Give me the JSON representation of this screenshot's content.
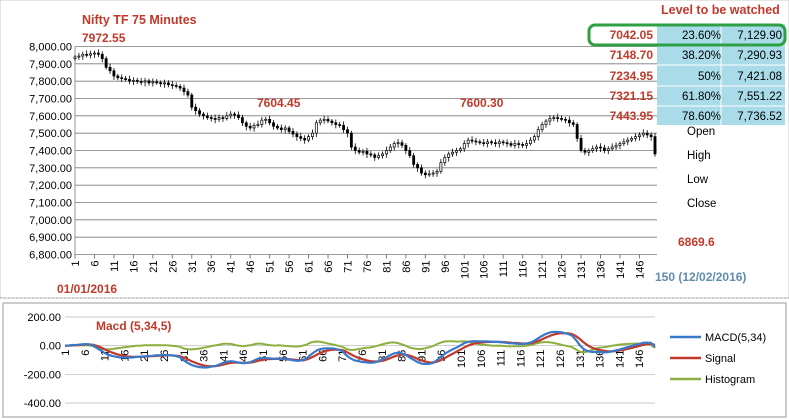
{
  "chart_data": [
    {
      "type": "candlestick",
      "title": "Nifty TF 75 Minutes",
      "y_ticks": [
        "8,000.00",
        "7,900.00",
        "7,800.00",
        "7,700.00",
        "7,600.00",
        "7,500.00",
        "7,400.00",
        "7,300.00",
        "7,200.00",
        "7,100.00",
        "7,000.00",
        "6,900.00",
        "6,800.00"
      ],
      "ylim": [
        6800,
        8000
      ],
      "x_ticks": [
        "1",
        "6",
        "11",
        "16",
        "21",
        "26",
        "31",
        "36",
        "41",
        "46",
        "51",
        "56",
        "61",
        "66",
        "71",
        "76",
        "81",
        "86",
        "91",
        "96",
        "101",
        "106",
        "111",
        "116",
        "121",
        "126",
        "131",
        "136",
        "141",
        "146"
      ],
      "xlim": [
        1,
        150
      ],
      "close": [
        7940,
        7945,
        7955,
        7950,
        7958,
        7962,
        7955,
        7930,
        7880,
        7860,
        7830,
        7820,
        7815,
        7810,
        7800,
        7805,
        7798,
        7795,
        7802,
        7790,
        7796,
        7792,
        7785,
        7790,
        7780,
        7775,
        7770,
        7760,
        7740,
        7720,
        7650,
        7630,
        7610,
        7600,
        7590,
        7585,
        7580,
        7590,
        7585,
        7600,
        7610,
        7605,
        7590,
        7560,
        7540,
        7530,
        7545,
        7550,
        7575,
        7580,
        7560,
        7540,
        7530,
        7520,
        7530,
        7510,
        7495,
        7480,
        7470,
        7460,
        7480,
        7500,
        7560,
        7575,
        7580,
        7570,
        7560,
        7550,
        7545,
        7520,
        7500,
        7420,
        7400,
        7390,
        7395,
        7380,
        7375,
        7360,
        7370,
        7380,
        7400,
        7420,
        7440,
        7445,
        7430,
        7400,
        7370,
        7320,
        7300,
        7270,
        7260,
        7265,
        7270,
        7280,
        7330,
        7360,
        7380,
        7390,
        7400,
        7410,
        7440,
        7460,
        7455,
        7450,
        7445,
        7440,
        7450,
        7445,
        7440,
        7450,
        7445,
        7440,
        7430,
        7440,
        7435,
        7430,
        7440,
        7460,
        7480,
        7520,
        7550,
        7570,
        7585,
        7590,
        7585,
        7580,
        7575,
        7560,
        7550,
        7470,
        7400,
        7390,
        7400,
        7410,
        7420,
        7415,
        7400,
        7410,
        7420,
        7430,
        7440,
        7450,
        7460,
        7470,
        7480,
        7490,
        7500,
        7490,
        7480,
        7380
      ],
      "annotations": [
        {
          "text": "7972.55",
          "x": 8,
          "y": 7972.55
        },
        {
          "text": "7604.45",
          "x": 55,
          "y": 7604.45
        },
        {
          "text": "7600.30",
          "x": 102,
          "y": 7600.3
        },
        {
          "text": "6869.6",
          "x": 148,
          "y": 6869.6
        }
      ],
      "x_start_label": "01/01/2016",
      "x_end_label": "150 (12/02/2016)",
      "levels_title": "Level to be watched",
      "levels": [
        {
          "label": "7042.05",
          "pct": "23.60%",
          "value": "7,129.90"
        },
        {
          "label": "7148.70",
          "pct": "38.20%",
          "value": "7,290.93"
        },
        {
          "label": "7234.95",
          "pct": "50%",
          "value": "7,421.08"
        },
        {
          "label": "7321.15",
          "pct": "61.80%",
          "value": "7,551.22"
        },
        {
          "label": "7443.95",
          "pct": "78.60%",
          "value": "7,736.52"
        }
      ],
      "ohlc_labels": [
        "Open",
        "High",
        "Low",
        "Close"
      ]
    },
    {
      "type": "line",
      "title": "Macd (5,34,5)",
      "y_ticks": [
        "200.00",
        "0.00",
        "-200.00",
        "-400.00"
      ],
      "ylim": [
        -400,
        200
      ],
      "x_ticks": [
        "1",
        "6",
        "11",
        "16",
        "21",
        "26",
        "31",
        "36",
        "41",
        "46",
        "51",
        "56",
        "61",
        "66",
        "71",
        "76",
        "81",
        "86",
        "91",
        "96",
        "101",
        "106",
        "111",
        "116",
        "121",
        "126",
        "131",
        "136",
        "141",
        "146"
      ],
      "series": [
        {
          "name": "MACD(5,34)",
          "color": "#3a78c9"
        },
        {
          "name": "Signal",
          "color": "#c0392b"
        },
        {
          "name": "Histogram",
          "color": "#8cb040"
        }
      ]
    }
  ]
}
